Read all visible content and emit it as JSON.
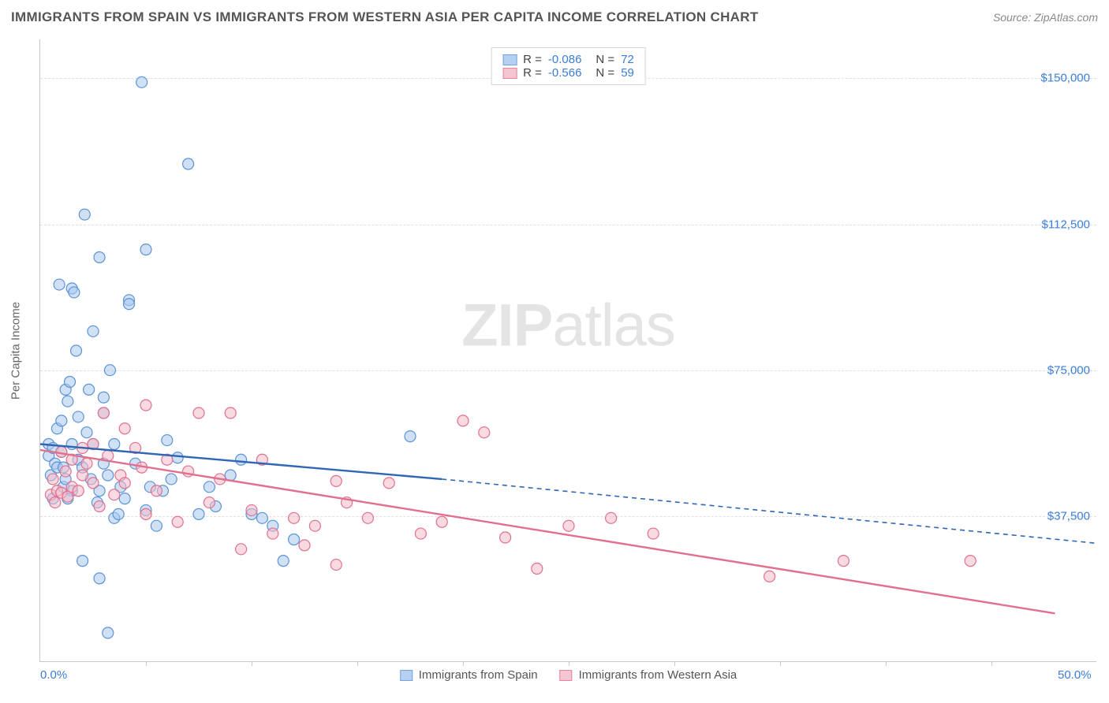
{
  "title": "IMMIGRANTS FROM SPAIN VS IMMIGRANTS FROM WESTERN ASIA PER CAPITA INCOME CORRELATION CHART",
  "source": "Source: ZipAtlas.com",
  "watermark": {
    "bold": "ZIP",
    "light": "atlas"
  },
  "ylabel": "Per Capita Income",
  "chart": {
    "type": "scatter-correlation",
    "background_color": "#ffffff",
    "grid_color": "#e0e0e0",
    "axis_color": "#c8c8c8",
    "text_color": "#555555",
    "value_color": "#3b7dd8",
    "xlim": [
      0,
      50
    ],
    "ylim": [
      0,
      160000
    ],
    "yticks": [
      {
        "v": 37500,
        "label": "$37,500"
      },
      {
        "v": 75000,
        "label": "$75,000"
      },
      {
        "v": 112500,
        "label": "$112,500"
      },
      {
        "v": 150000,
        "label": "$150,000"
      }
    ],
    "xticks": [
      {
        "v": 0,
        "label": "0.0%"
      },
      {
        "v": 50,
        "label": "50.0%"
      }
    ],
    "xminor_step": 5,
    "marker_radius": 7,
    "marker_stroke_width": 1.2,
    "trend_line_width": 2.4,
    "series": [
      {
        "name": "Immigrants from Spain",
        "fill": "#a9c8ef",
        "stroke": "#5b93d6",
        "fill_opacity": 0.55,
        "R": "-0.086",
        "N": "72",
        "trend": {
          "x1": 0,
          "y1": 56000,
          "x2": 19,
          "y2": 47000,
          "color": "#2f66b5",
          "dash_to_x": 50,
          "dash_y": 30500
        },
        "points": [
          [
            0.4,
            53000
          ],
          [
            0.4,
            56000
          ],
          [
            0.5,
            48000
          ],
          [
            0.6,
            42000
          ],
          [
            0.6,
            55000
          ],
          [
            0.7,
            51000
          ],
          [
            0.8,
            50000
          ],
          [
            0.8,
            60000
          ],
          [
            0.9,
            97000
          ],
          [
            1.0,
            62000
          ],
          [
            1.0,
            54000
          ],
          [
            1.1,
            45000
          ],
          [
            1.2,
            47000
          ],
          [
            1.2,
            70000
          ],
          [
            1.3,
            67000
          ],
          [
            1.4,
            72000
          ],
          [
            1.5,
            44000
          ],
          [
            1.5,
            56000
          ],
          [
            1.5,
            96000
          ],
          [
            1.6,
            95000
          ],
          [
            1.7,
            80000
          ],
          [
            1.8,
            63000
          ],
          [
            1.8,
            52000
          ],
          [
            2.0,
            26000
          ],
          [
            2.0,
            50000
          ],
          [
            2.1,
            115000
          ],
          [
            2.2,
            59000
          ],
          [
            2.3,
            70000
          ],
          [
            2.4,
            47000
          ],
          [
            2.5,
            85000
          ],
          [
            2.5,
            56000
          ],
          [
            2.7,
            41000
          ],
          [
            2.8,
            44000
          ],
          [
            2.8,
            104000
          ],
          [
            3.0,
            68000
          ],
          [
            3.0,
            51000
          ],
          [
            3.0,
            64000
          ],
          [
            3.2,
            48000
          ],
          [
            3.3,
            75000
          ],
          [
            3.5,
            37000
          ],
          [
            3.5,
            56000
          ],
          [
            3.7,
            38000
          ],
          [
            3.8,
            45000
          ],
          [
            4.0,
            42000
          ],
          [
            4.2,
            93000
          ],
          [
            4.2,
            92000
          ],
          [
            4.5,
            51000
          ],
          [
            4.8,
            149000
          ],
          [
            5.0,
            39000
          ],
          [
            5.0,
            106000
          ],
          [
            5.2,
            45000
          ],
          [
            5.5,
            35000
          ],
          [
            5.8,
            44000
          ],
          [
            6.0,
            57000
          ],
          [
            6.2,
            47000
          ],
          [
            6.5,
            52500
          ],
          [
            7.0,
            128000
          ],
          [
            7.5,
            38000
          ],
          [
            8.0,
            45000
          ],
          [
            8.3,
            40000
          ],
          [
            9.0,
            48000
          ],
          [
            9.5,
            52000
          ],
          [
            10.0,
            38000
          ],
          [
            10.5,
            37000
          ],
          [
            11.0,
            35000
          ],
          [
            11.5,
            26000
          ],
          [
            12.0,
            31500
          ],
          [
            3.2,
            7500
          ],
          [
            2.8,
            21500
          ],
          [
            1.3,
            42000
          ],
          [
            17.5,
            58000
          ],
          [
            1.1,
            50000
          ]
        ]
      },
      {
        "name": "Immigrants from Western Asia",
        "fill": "#f4bcc9",
        "stroke": "#e16f8f",
        "fill_opacity": 0.55,
        "R": "-0.566",
        "N": "59",
        "trend": {
          "x1": 0,
          "y1": 54500,
          "x2": 48,
          "y2": 12500,
          "color": "#e16f8f"
        },
        "points": [
          [
            0.5,
            43000
          ],
          [
            0.6,
            47000
          ],
          [
            0.8,
            44000
          ],
          [
            1.0,
            54000
          ],
          [
            1.0,
            43500
          ],
          [
            1.2,
            49000
          ],
          [
            1.3,
            42500
          ],
          [
            1.5,
            52000
          ],
          [
            1.5,
            45000
          ],
          [
            1.8,
            44000
          ],
          [
            2.0,
            55000
          ],
          [
            2.0,
            48000
          ],
          [
            2.2,
            51000
          ],
          [
            2.5,
            56000
          ],
          [
            2.5,
            46000
          ],
          [
            2.8,
            40000
          ],
          [
            3.0,
            64000
          ],
          [
            3.2,
            53000
          ],
          [
            3.5,
            43000
          ],
          [
            3.8,
            48000
          ],
          [
            4.0,
            60000
          ],
          [
            4.0,
            46000
          ],
          [
            4.5,
            55000
          ],
          [
            4.8,
            50000
          ],
          [
            5.0,
            38000
          ],
          [
            5.0,
            66000
          ],
          [
            5.5,
            44000
          ],
          [
            6.0,
            52000
          ],
          [
            6.5,
            36000
          ],
          [
            7.0,
            49000
          ],
          [
            7.5,
            64000
          ],
          [
            8.0,
            41000
          ],
          [
            8.5,
            47000
          ],
          [
            9.0,
            64000
          ],
          [
            9.5,
            29000
          ],
          [
            10.0,
            39000
          ],
          [
            10.5,
            52000
          ],
          [
            11.0,
            33000
          ],
          [
            12.0,
            37000
          ],
          [
            12.5,
            30000
          ],
          [
            13.0,
            35000
          ],
          [
            14.0,
            25000
          ],
          [
            14.5,
            41000
          ],
          [
            15.5,
            37000
          ],
          [
            16.5,
            46000
          ],
          [
            18.0,
            33000
          ],
          [
            19.0,
            36000
          ],
          [
            20.0,
            62000
          ],
          [
            21.0,
            59000
          ],
          [
            22.0,
            32000
          ],
          [
            23.5,
            24000
          ],
          [
            25.0,
            35000
          ],
          [
            27.0,
            37000
          ],
          [
            29.0,
            33000
          ],
          [
            34.5,
            22000
          ],
          [
            38.0,
            26000
          ],
          [
            44.0,
            26000
          ],
          [
            0.7,
            41000
          ],
          [
            14.0,
            46500
          ]
        ]
      }
    ]
  }
}
